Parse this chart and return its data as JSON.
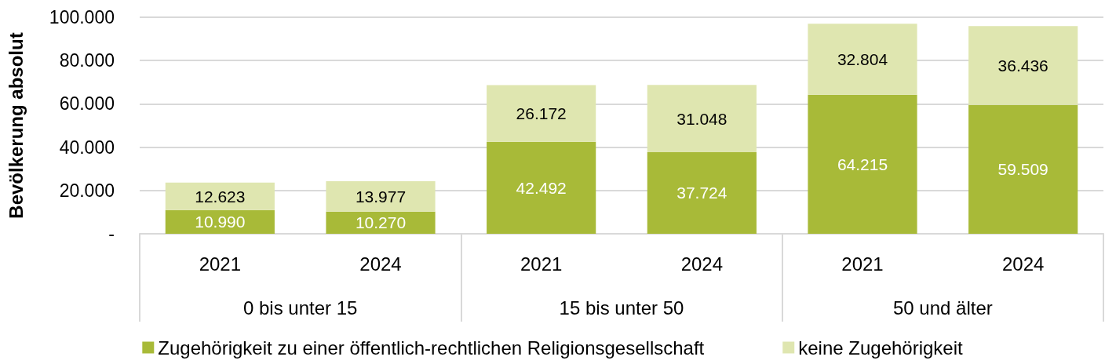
{
  "chart_data": {
    "type": "bar",
    "stacked": true,
    "ylabel": "Bevölkerung absolut",
    "categories": [
      "2021",
      "2024",
      "2021",
      "2024",
      "2021",
      "2024"
    ],
    "annotations": [
      "0 bis unter 15",
      "15 bis unter 50",
      "50 und älter"
    ],
    "series": [
      {
        "name": "Zugehörigkeit zu einer öffentlich-rechtlichen Religionsgesellschaft",
        "color": "#a8ba38",
        "values": [
          10990,
          10270,
          42492,
          37724,
          64215,
          59509
        ],
        "value_labels": [
          "10.990",
          "10.270",
          "42.492",
          "37.724",
          "64.215",
          "59.509"
        ]
      },
      {
        "name": "keine Zugehörigkeit",
        "color": "#dfe6b0",
        "values": [
          12623,
          13977,
          26172,
          31048,
          32804,
          36436
        ],
        "value_labels": [
          "12.623",
          "13.977",
          "26.172",
          "31.048",
          "32.804",
          "36.436"
        ]
      }
    ],
    "ylim": [
      0,
      100000
    ],
    "yticks": [
      {
        "value": 0,
        "label": "-"
      },
      {
        "value": 20000,
        "label": "20.000"
      },
      {
        "value": 40000,
        "label": "40.000"
      },
      {
        "value": 60000,
        "label": "60.000"
      },
      {
        "value": 80000,
        "label": "80.000"
      },
      {
        "value": 100000,
        "label": "100.000"
      }
    ],
    "grid": "y",
    "legend": "bottom"
  }
}
